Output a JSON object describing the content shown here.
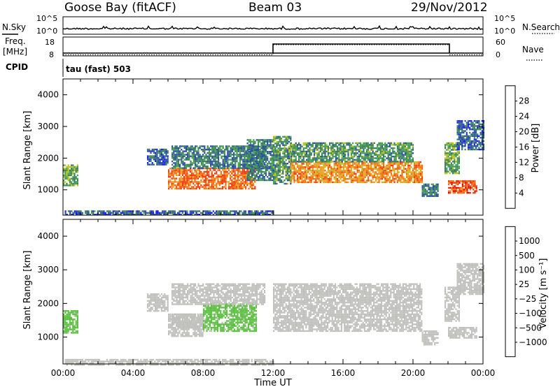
{
  "header": {
    "station": "Goose Bay (fitACF)",
    "beam": "Beam 03",
    "date": "29/Nov/2012"
  },
  "panels": {
    "nsky": {
      "left_label": "N.Sky",
      "left_ticks": [
        "10^5",
        "10^0"
      ],
      "right_label": "N.Search",
      "right_ticks": [
        "10^5",
        "10^0"
      ]
    },
    "freq": {
      "left_label_1": "Freq.",
      "left_label_2": "[MHz]",
      "left_ticks": [
        "18",
        "8"
      ],
      "right_label": "Nave",
      "right_ticks": [
        "60",
        "0"
      ]
    },
    "cpid": {
      "label": "CPID",
      "text": "tau (fast) 503"
    }
  },
  "colors": {
    "power_scale": [
      "#1a1aff",
      "#2b4fa8",
      "#3a7d5a",
      "#44a050",
      "#b8c020",
      "#f0a020",
      "#f07010",
      "#f03a10",
      "#e00000"
    ],
    "velocity_scale": [
      "#1a2f9f",
      "#2c5aa8",
      "#2c7f50",
      "#5bc040",
      "#c0c0bc",
      "#c0c0bc",
      "#f0a020",
      "#f06a10",
      "#e03010",
      "#e00000"
    ]
  },
  "chart_data": [
    {
      "type": "heatmap",
      "title": "",
      "ylabel": "Slant Range [km]",
      "xlabel": "",
      "ylim": [
        200,
        4500
      ],
      "xlim": [
        0,
        24
      ],
      "y_ticks": [
        "1000",
        "2000",
        "3000",
        "4000"
      ],
      "x_ticks": [
        "00:00",
        "04:00",
        "08:00",
        "12:00",
        "16:00",
        "20:00",
        "00:00"
      ],
      "colorbar_label": "Power [dB]",
      "colorbar_ticks": [
        "28",
        "24",
        "20",
        "16",
        "12",
        "8",
        "4"
      ],
      "colorbar_range": [
        0,
        30
      ],
      "echo_regions": [
        {
          "t0": 0.0,
          "t1": 0.8,
          "r0": 1150,
          "r1": 1800,
          "value": 12
        },
        {
          "t0": 0.1,
          "t1": 12.0,
          "r0": 200,
          "r1": 350,
          "value": 6
        },
        {
          "t0": 4.8,
          "t1": 6.0,
          "r0": 1800,
          "r1": 2300,
          "value": 6
        },
        {
          "t0": 6.0,
          "t1": 11.0,
          "r0": 1050,
          "r1": 1700,
          "value": 22
        },
        {
          "t0": 6.2,
          "t1": 11.5,
          "r0": 1700,
          "r1": 2400,
          "value": 8
        },
        {
          "t0": 10.5,
          "t1": 12.0,
          "r0": 1300,
          "r1": 2600,
          "value": 8
        },
        {
          "t0": 12.0,
          "t1": 13.0,
          "r0": 1200,
          "r1": 2700,
          "value": 10
        },
        {
          "t0": 13.0,
          "t1": 20.5,
          "r0": 1250,
          "r1": 1900,
          "value": 20
        },
        {
          "t0": 13.0,
          "t1": 20.0,
          "r0": 1900,
          "r1": 2500,
          "value": 10
        },
        {
          "t0": 20.5,
          "t1": 21.4,
          "r0": 800,
          "r1": 1200,
          "value": 8
        },
        {
          "t0": 21.8,
          "t1": 22.6,
          "r0": 1500,
          "r1": 2500,
          "value": 12
        },
        {
          "t0": 22.0,
          "t1": 23.6,
          "r0": 900,
          "r1": 1300,
          "value": 24
        },
        {
          "t0": 22.5,
          "t1": 24.0,
          "r0": 2300,
          "r1": 3200,
          "value": 6
        }
      ]
    },
    {
      "type": "heatmap",
      "title": "",
      "ylabel": "Slant Range [km]",
      "xlabel": "Time UT",
      "ylim": [
        200,
        4500
      ],
      "xlim": [
        0,
        24
      ],
      "y_ticks": [
        "1000",
        "2000",
        "3000",
        "4000"
      ],
      "x_ticks": [
        "00:00",
        "04:00",
        "08:00",
        "12:00",
        "16:00",
        "20:00",
        "00:00"
      ],
      "colorbar_label": "Velocity [m s⁻¹]",
      "colorbar_ticks": [
        "1000",
        "500",
        "100",
        "25",
        "−25",
        "−100",
        "−500",
        "−1000"
      ],
      "colorbar_range": [
        -1200,
        1200
      ],
      "echo_regions": [
        {
          "t0": 0.0,
          "t1": 0.8,
          "r0": 1150,
          "r1": 1800,
          "value": -300
        },
        {
          "t0": 0.1,
          "t1": 12.0,
          "r0": 200,
          "r1": 350,
          "value": 50
        },
        {
          "t0": 4.8,
          "t1": 6.0,
          "r0": 1800,
          "r1": 2300,
          "value": 0
        },
        {
          "t0": 6.0,
          "t1": 8.0,
          "r0": 1050,
          "r1": 1700,
          "value": 0
        },
        {
          "t0": 6.2,
          "t1": 8.0,
          "r0": 1300,
          "r1": 1700,
          "value": 100
        },
        {
          "t0": 8.0,
          "t1": 11.0,
          "r0": 1200,
          "r1": 2000,
          "value": -300
        },
        {
          "t0": 6.2,
          "t1": 11.5,
          "r0": 2000,
          "r1": 2600,
          "value": 0
        },
        {
          "t0": 12.0,
          "t1": 20.5,
          "r0": 1200,
          "r1": 2600,
          "value": 0
        },
        {
          "t0": 20.5,
          "t1": 21.4,
          "r0": 800,
          "r1": 1200,
          "value": 0
        },
        {
          "t0": 21.8,
          "t1": 22.6,
          "r0": 1500,
          "r1": 2500,
          "value": 0
        },
        {
          "t0": 22.0,
          "t1": 23.6,
          "r0": 1000,
          "r1": 1300,
          "value": -150
        },
        {
          "t0": 22.5,
          "t1": 24.0,
          "r0": 2300,
          "r1": 3200,
          "value": 0
        }
      ]
    }
  ]
}
